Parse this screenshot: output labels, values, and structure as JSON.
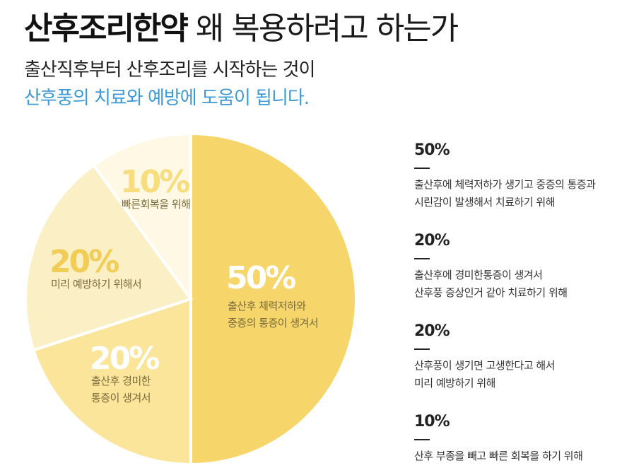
{
  "header": {
    "title_bold": "산후조리한약",
    "title_rest": "왜 복용하려고 하는가",
    "subtitle_line1": "출산직후부터 산후조리를 시작하는 것이",
    "subtitle_line2": "산후풍의 치료와 예방에 도움이 됩니다."
  },
  "chart_data": {
    "type": "pie",
    "slices": [
      {
        "value": 50,
        "label": "50%",
        "desc": [
          "출산후 체력저하와",
          "중증의 통증이 생겨서"
        ],
        "color": "#f6d56b",
        "text_color": "#ffffff",
        "desc_color": "#7a6a3a"
      },
      {
        "value": 20,
        "label": "20%",
        "desc": [
          "출산후 경미한",
          "통증이 생겨서"
        ],
        "color": "#fbe59a",
        "text_color": "#ffffff",
        "desc_color": "#7a6a3a"
      },
      {
        "value": 20,
        "label": "20%",
        "desc": [
          "미리 예방하기 위해서"
        ],
        "color": "#fbefc6",
        "text_color": "#f1cd55",
        "desc_color": "#7a6a3a"
      },
      {
        "value": 10,
        "label": "10%",
        "desc": [
          "빠른회복을 위해"
        ],
        "color": "#fef8e4",
        "text_color": "#f8dd7d",
        "desc_color": "#7a6a3a"
      }
    ]
  },
  "legend": [
    {
      "pct": "50%",
      "lines": [
        "출산후에 체력저하가 생기고 중증의 통증과",
        "시린감이 발생해서 치료하기 위해"
      ]
    },
    {
      "pct": "20%",
      "lines": [
        "출산후에 경미한통증이 생겨서",
        "산후풍 증상인거 같아 치료하기 위해"
      ]
    },
    {
      "pct": "20%",
      "lines": [
        "산후풍이 생기면 고생한다고 해서",
        "미리 예방하기 위해"
      ]
    },
    {
      "pct": "10%",
      "lines": [
        "산후 부종을 빼고 빠른 회복을 하기 위해"
      ]
    }
  ]
}
